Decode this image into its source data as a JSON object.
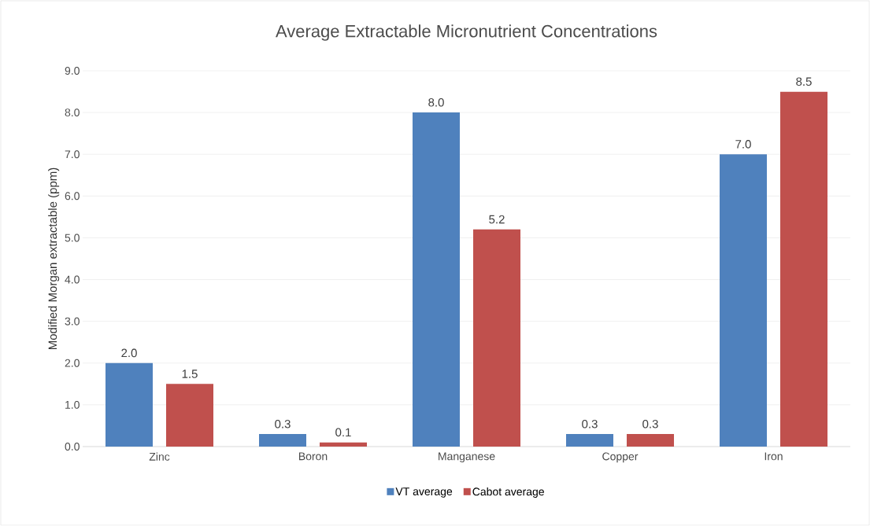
{
  "chart_data": {
    "type": "bar",
    "title": "Average Extractable Micronutrient Concentrations",
    "ylabel": "Modified Morgan extractable (ppm)",
    "categories": [
      "Zinc",
      "Boron",
      "Manganese",
      "Copper",
      "Iron"
    ],
    "series": [
      {
        "name": "VT average",
        "color": "#4f81bd",
        "values": [
          2.0,
          0.3,
          8.0,
          0.3,
          7.0
        ],
        "value_labels": [
          "2.0",
          "0.3",
          "8.0",
          "0.3",
          "7.0"
        ]
      },
      {
        "name": "Cabot average",
        "color": "#c0504d",
        "values": [
          1.5,
          0.1,
          5.2,
          0.3,
          8.5
        ],
        "value_labels": [
          "1.5",
          "0.1",
          "5.2",
          "0.3",
          "8.5"
        ]
      }
    ],
    "ylim": [
      0,
      9
    ],
    "yticks": [
      {
        "value": 0,
        "label": "0.0"
      },
      {
        "value": 1,
        "label": "1.0"
      },
      {
        "value": 2,
        "label": "2.0"
      },
      {
        "value": 3,
        "label": "3.0"
      },
      {
        "value": 4,
        "label": "4.0"
      },
      {
        "value": 5,
        "label": "5.0"
      },
      {
        "value": 6,
        "label": "6.0"
      },
      {
        "value": 7,
        "label": "7.0"
      },
      {
        "value": 8,
        "label": "8.0"
      },
      {
        "value": 9,
        "label": "9.0"
      }
    ],
    "grid": "y",
    "legend": "bottom"
  }
}
